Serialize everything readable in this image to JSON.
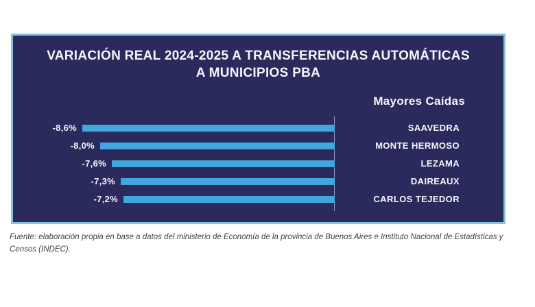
{
  "page": {
    "background": "#ffffff"
  },
  "panel": {
    "background": "#2b2a5c",
    "border_color": "#85c2e2",
    "title_line1": "VARIACIÓN REAL 2024-2025 A TRANSFERENCIAS AUTOMÁTICAS",
    "title_line2": "A MUNICIPIOS PBA",
    "section_label": "Mayores Caídas"
  },
  "chart_data": {
    "type": "bar",
    "orientation": "horizontal",
    "title": "VARIACIÓN REAL 2024-2025 A TRANSFERENCIAS AUTOMÁTICAS A MUNICIPIOS PBA",
    "group_label": "Mayores Caídas",
    "categories": [
      "SAAVEDRA",
      "MONTE HERMOSO",
      "LEZAMA",
      "DAIREAUX",
      "CARLOS TEJEDOR"
    ],
    "values": [
      -8.6,
      -8.0,
      -7.6,
      -7.3,
      -7.2
    ],
    "value_labels": [
      "-8,6%",
      "-8,0%",
      "-7,6%",
      "-7,3%",
      "-7,2%"
    ],
    "unit": "%",
    "bar_color": "#41a7de",
    "axis_color": "#8f9cc4",
    "grid": false,
    "legend_position": "none",
    "bars_extend": "leftward-from-axis"
  },
  "footer": {
    "source_text": "Fuente: elaboración propia en base a datos del ministerio de Economía de la provincia de Buenos Aires e Instituto Nacional de Estadísticas y Censos (INDEC)."
  }
}
